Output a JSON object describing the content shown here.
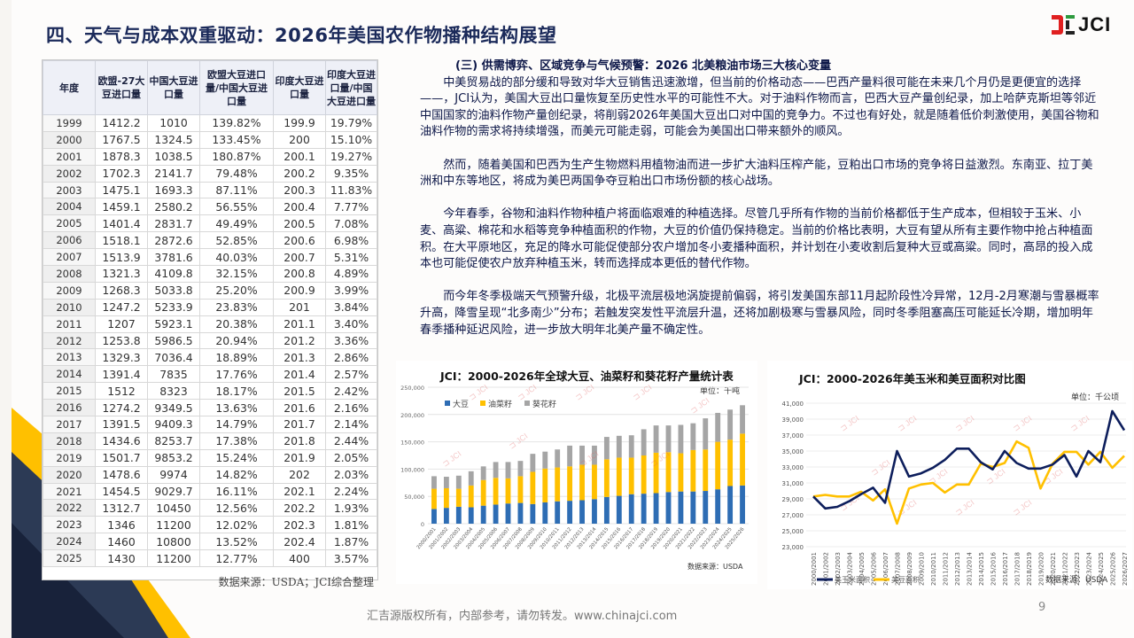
{
  "page": {
    "title": "四、天气与成本双重驱动：2026年美国农作物播种结构展望",
    "logo_text": "JCI",
    "footer": "汇吉源版权所有，内部参考，请勿转发。www.chinajci.com",
    "page_number": "9",
    "colors": {
      "navy": "#1b2a5a",
      "yellow": "#ffc000",
      "red": "#e02020",
      "green": "#2e9a3e"
    }
  },
  "table": {
    "headers": [
      "年度",
      "欧盟-27大豆进口量",
      "中国大豆进口量",
      "欧盟大豆进口量/中国大豆进口量",
      "印度大豆进口量",
      "印度大豆进口量/中国大豆进口量"
    ],
    "rows": [
      [
        "1999",
        "1412.2",
        "1010",
        "139.82%",
        "199.9",
        "19.79%"
      ],
      [
        "2000",
        "1767.5",
        "1324.5",
        "133.45%",
        "200",
        "15.10%"
      ],
      [
        "2001",
        "1878.3",
        "1038.5",
        "180.87%",
        "200.1",
        "19.27%"
      ],
      [
        "2002",
        "1702.3",
        "2141.7",
        "79.48%",
        "200.2",
        "9.35%"
      ],
      [
        "2003",
        "1475.1",
        "1693.3",
        "87.11%",
        "200.3",
        "11.83%"
      ],
      [
        "2004",
        "1459.1",
        "2580.2",
        "56.55%",
        "200.4",
        "7.77%"
      ],
      [
        "2005",
        "1401.4",
        "2831.7",
        "49.49%",
        "200.5",
        "7.08%"
      ],
      [
        "2006",
        "1518.1",
        "2872.6",
        "52.85%",
        "200.6",
        "6.98%"
      ],
      [
        "2007",
        "1513.9",
        "3781.6",
        "40.03%",
        "200.7",
        "5.31%"
      ],
      [
        "2008",
        "1321.3",
        "4109.8",
        "32.15%",
        "200.8",
        "4.89%"
      ],
      [
        "2009",
        "1268.3",
        "5033.8",
        "25.20%",
        "200.9",
        "3.99%"
      ],
      [
        "2010",
        "1247.2",
        "5233.9",
        "23.83%",
        "201",
        "3.84%"
      ],
      [
        "2011",
        "1207",
        "5923.1",
        "20.38%",
        "201.1",
        "3.40%"
      ],
      [
        "2012",
        "1253.8",
        "5986.5",
        "20.94%",
        "201.2",
        "3.36%"
      ],
      [
        "2013",
        "1329.3",
        "7036.4",
        "18.89%",
        "201.3",
        "2.86%"
      ],
      [
        "2014",
        "1391.4",
        "7835",
        "17.76%",
        "201.4",
        "2.57%"
      ],
      [
        "2015",
        "1512",
        "8323",
        "18.17%",
        "201.5",
        "2.42%"
      ],
      [
        "2016",
        "1274.2",
        "9349.5",
        "13.63%",
        "201.6",
        "2.16%"
      ],
      [
        "2017",
        "1391.5",
        "9409.3",
        "14.79%",
        "201.7",
        "2.14%"
      ],
      [
        "2018",
        "1434.6",
        "8253.7",
        "17.38%",
        "201.8",
        "2.44%"
      ],
      [
        "2019",
        "1501.7",
        "9853.2",
        "15.24%",
        "201.9",
        "2.05%"
      ],
      [
        "2020",
        "1478.6",
        "9974",
        "14.82%",
        "202",
        "2.03%"
      ],
      [
        "2021",
        "1454.5",
        "9029.7",
        "16.11%",
        "202.1",
        "2.24%"
      ],
      [
        "2022",
        "1312.7",
        "10450",
        "12.56%",
        "202.2",
        "1.93%"
      ],
      [
        "2023",
        "1346",
        "11200",
        "12.02%",
        "202.3",
        "1.81%"
      ],
      [
        "2024",
        "1460",
        "10800",
        "13.52%",
        "202.4",
        "1.87%"
      ],
      [
        "2025",
        "1430",
        "11200",
        "12.77%",
        "400",
        "3.57%"
      ]
    ],
    "source": "数据来源：USDA；JCI综合整理"
  },
  "article": {
    "subheading": "(三) 供需博弈、区域竞争与气候预警：2026 北美粮油市场三大核心变量",
    "paragraphs": [
      "中美贸易战的部分缓和导致对华大豆销售迅速激增，但当前的价格动态——巴西产量料很可能在未来几个月仍是更便宜的选择——，JCI认为，美国大豆出口量恢复至历史性水平的可能性不大。对于油料作物而言，巴西大豆产量创纪录，加上哈萨克斯坦等邻近中国国家的油料作物产量创纪录，将削弱2026年美国大豆出口对中国的竞争力。不过也有好处，就是随着低价刺激使用，美国谷物和油料作物的需求将持续增强，而美元可能走弱，可能会为美国出口带来额外的顺风。",
      "然而，随着美国和巴西为生产生物燃料用植物油而进一步扩大油料压榨产能，豆粕出口市场的竞争将日益激烈。东南亚、拉丁美洲和中东等地区，将成为美巴两国争夺豆粕出口市场份额的核心战场。",
      "今年春季，谷物和油料作物种植户将面临艰难的种植选择。尽管几乎所有作物的当前价格都低于生产成本，但相较于玉米、小麦、高粱、棉花和水稻等竞争种植面积的作物，大豆的价值仍保持稳定。当前的价格比表明，大豆有望从所有主要作物中抢占种植面积。在大平原地区，充足的降水可能促使部分农户增加冬小麦播种面积，并计划在小麦收割后复种大豆或高粱。同时，高昂的投入成本也可能促使农户放弃种植玉米，转而选择成本更低的替代作物。",
      "而今年冬季极端天气预警升级，北极平流层极地涡旋提前偏弱，将引发美国东部11月起阶段性冷异常，12月-2月寒潮与雪暴概率升高，降雪呈现“北多南少”分布；若触发突发性平流层升温，还将加剧极寒与雪暴风险，同时冬季阻塞高压可能延长冷期，增加明年春季播种延迟风险，进一步放大明年北美产量不确定性。"
    ]
  },
  "chart_data": [
    {
      "type": "bar",
      "stacked": true,
      "title": "JCI：2000-2026年全球大豆、油菜籽和葵花籽产量统计表",
      "unit": "单位：千吨",
      "source": "数据来源：USDA",
      "watermark": "JCI",
      "ylim": [
        0,
        250000
      ],
      "yticks": [
        "0",
        "50,000",
        "100,000",
        "150,000",
        "200,000",
        "250,000"
      ],
      "ytick_values": [
        0,
        50000,
        100000,
        150000,
        200000,
        250000
      ],
      "grid": true,
      "legend": "top-left",
      "categories": [
        "2000/2001",
        "2001/2002",
        "2002/2003",
        "2003/2004",
        "2004/2005",
        "2005/2006",
        "2006/2007",
        "2007/2008",
        "2008/2009",
        "2009/2010",
        "2010/2011",
        "2011/2012",
        "2012/2013",
        "2013/2014",
        "2014/2015",
        "2015/2016",
        "2016/2017",
        "2017/2018",
        "2018/2019",
        "2019/2020",
        "2020/2021",
        "2021/2022",
        "2022/2023",
        "2023/2024",
        "2024/2025",
        "2025/2026"
      ],
      "series": [
        {
          "name": "大豆",
          "color": "#2e6db4",
          "values": [
            27000,
            29000,
            31000,
            30000,
            33000,
            35000,
            37000,
            38000,
            36000,
            39000,
            41000,
            42000,
            43000,
            45000,
            49000,
            51000,
            54000,
            55000,
            56000,
            58000,
            59000,
            59000,
            60000,
            63000,
            69000,
            70000
          ]
        },
        {
          "name": "油菜籽",
          "color": "#ffc000",
          "values": [
            37000,
            36000,
            33000,
            40000,
            47000,
            49000,
            46000,
            49000,
            59000,
            62000,
            62000,
            63000,
            65000,
            63000,
            69000,
            70000,
            67000,
            70000,
            74000,
            73000,
            70000,
            76000,
            76000,
            87000,
            85000,
            95000
          ]
        },
        {
          "name": "葵花籽",
          "color": "#a5a5a5",
          "values": [
            23000,
            21000,
            24000,
            26000,
            25000,
            29000,
            30000,
            28000,
            33000,
            31000,
            33000,
            38000,
            35000,
            35000,
            41000,
            40000,
            41000,
            48000,
            50000,
            49000,
            52000,
            49000,
            57000,
            53000,
            55000,
            52000
          ]
        }
      ]
    },
    {
      "type": "line",
      "title": "JCI：2000-2026年美玉米和美豆面积对比图",
      "unit": "单位：千公顷",
      "source": "数据来源：USDA",
      "watermark": "JCI",
      "ylim": [
        23000,
        41000
      ],
      "yticks": [
        "23,000",
        "25,000",
        "27,000",
        "29,000",
        "31,000",
        "33,000",
        "35,000",
        "37,000",
        "39,000",
        "41,000"
      ],
      "ytick_values": [
        23000,
        25000,
        27000,
        29000,
        31000,
        33000,
        35000,
        37000,
        39000,
        41000
      ],
      "grid": true,
      "legend": "bottom-left",
      "categories": [
        "2000/2001",
        "2001/2002",
        "2002/2003",
        "2003/2004",
        "2004/2005",
        "2005/2006",
        "2006/2007",
        "2007/2008",
        "2008/2009",
        "2009/2010",
        "2010/2011",
        "2011/2012",
        "2012/2013",
        "2013/2014",
        "2014/2015",
        "2015/2016",
        "2016/2017",
        "2017/2018",
        "2018/2019",
        "2019/2020",
        "2020/2021",
        "2021/2022",
        "2022/2023",
        "2023/2024",
        "2024/2025",
        "2025/2026",
        "2026/2027"
      ],
      "series": [
        {
          "name": "美玉米面积",
          "color": "#0d1e5c",
          "values": [
            29300,
            27800,
            28000,
            28700,
            29600,
            30400,
            28500,
            35000,
            31800,
            32200,
            32900,
            33900,
            35300,
            35300,
            33600,
            32700,
            35000,
            33500,
            32800,
            32800,
            33300,
            34500,
            31800,
            35000,
            33600,
            40000,
            37600
          ]
        },
        {
          "name": "美豆面积",
          "color": "#ffc000",
          "values": [
            29300,
            29500,
            29300,
            29300,
            29900,
            28800,
            30200,
            25900,
            30300,
            30800,
            31000,
            29800,
            30800,
            30800,
            33400,
            33000,
            33500,
            36200,
            35400,
            30300,
            33400,
            34900,
            34900,
            33300,
            34900,
            32900,
            34400
          ]
        }
      ]
    }
  ]
}
